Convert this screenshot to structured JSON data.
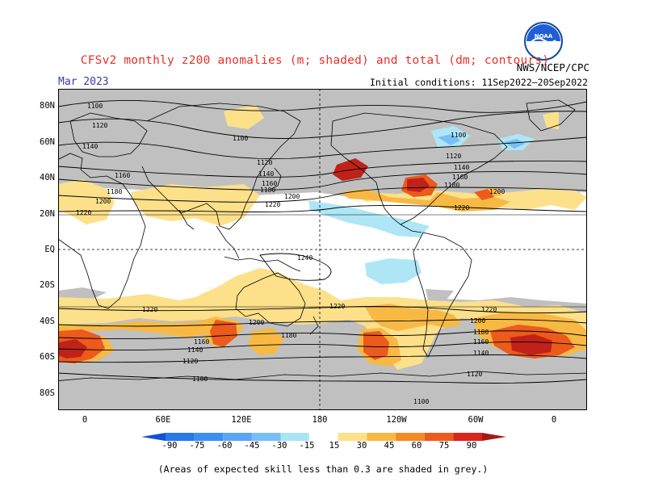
{
  "title": "CFSv2 monthly z200 anomalies (m; shaded) and total (dm; contours)",
  "target_month": "Mar 2023",
  "agency": "NWS/NCEP/CPC",
  "initial_conditions": "Initial conditions: 11Sep2022–20Sep2022",
  "logo_text": "NOAA",
  "footnote": "(Areas of expected skill less than 0.3 are shaded in grey.)",
  "latitude_labels": [
    "80N",
    "60N",
    "40N",
    "20N",
    "EQ",
    "20S",
    "40S",
    "60S",
    "80S"
  ],
  "longitude_labels": [
    "0",
    "60E",
    "120E",
    "180",
    "120W",
    "60W",
    "0"
  ],
  "colorbar": {
    "labels": [
      "-90",
      "-75",
      "-60",
      "-45",
      "-30",
      "-15",
      "15",
      "30",
      "45",
      "60",
      "75",
      "90"
    ],
    "colors": [
      "#1450d2",
      "#2778e8",
      "#3c8ff2",
      "#5aa5f5",
      "#78bef8",
      "#a8e4f4",
      "#ffffff",
      "#fde08a",
      "#f8b944",
      "#f38a25",
      "#ec5a1c",
      "#d8261b",
      "#a51a14"
    ]
  },
  "contour_labels": {
    "north": [
      "1100",
      "1120",
      "1140",
      "1160",
      "1180",
      "1200",
      "1220"
    ],
    "tropics": [
      "1240"
    ],
    "south": [
      "1220",
      "1200",
      "1180",
      "1160",
      "1140",
      "1120",
      "1100"
    ]
  },
  "map_colors": {
    "grey_skill_mask": "#c0c0c0",
    "positive_light": "#fde08a",
    "positive_mid": "#f8b944",
    "positive_strong": "#ec5a1c",
    "positive_max": "#c0221a",
    "negative_light": "#aee6f5",
    "negative_mid": "#78bef8"
  }
}
